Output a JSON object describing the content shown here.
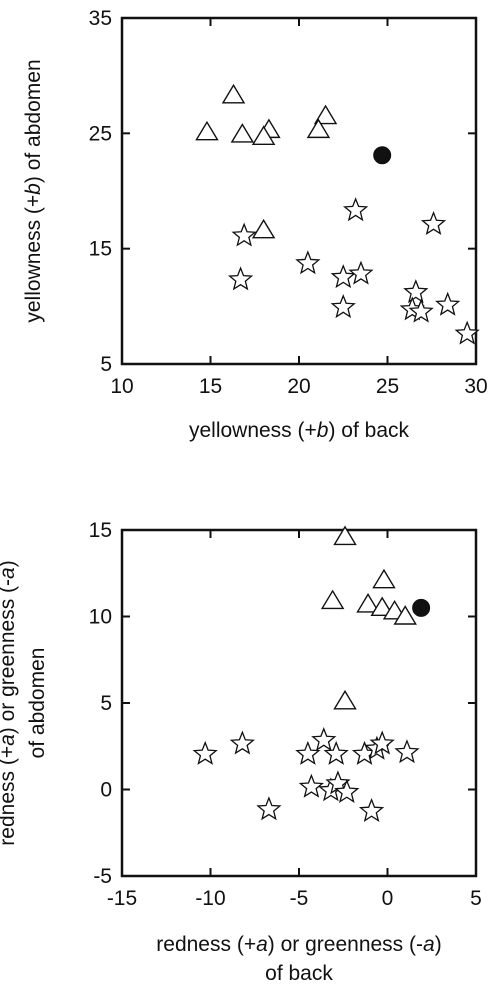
{
  "chart_data": [
    {
      "type": "scatter",
      "xlabel": [
        "yellowness (+",
        "b",
        ") of back"
      ],
      "ylabel": [
        "yellowness (+",
        "b",
        ") of abdomen"
      ],
      "xlim": [
        10,
        30
      ],
      "ylim": [
        5,
        35
      ],
      "xticks": [
        10,
        15,
        20,
        25,
        30
      ],
      "yticks": [
        5,
        15,
        25,
        35
      ],
      "xtick_labels": [
        "10",
        "15",
        "20",
        "25",
        "30"
      ],
      "ytick_labels": [
        "5",
        "15",
        "25",
        "35"
      ],
      "grid": false,
      "series": [
        {
          "marker": "triangle",
          "color": "#ffffff",
          "points": [
            [
              16.3,
              28.3
            ],
            [
              21.5,
              26.5
            ],
            [
              14.8,
              25.1
            ],
            [
              16.8,
              24.9
            ],
            [
              18.3,
              25.3
            ],
            [
              18.0,
              24.7
            ],
            [
              21.1,
              25.3
            ],
            [
              18.0,
              16.6
            ]
          ]
        },
        {
          "marker": "star",
          "color": "#ffffff",
          "points": [
            [
              23.2,
              18.4
            ],
            [
              27.6,
              17.2
            ],
            [
              16.9,
              16.2
            ],
            [
              20.5,
              13.8
            ],
            [
              16.7,
              12.4
            ],
            [
              22.5,
              12.6
            ],
            [
              23.5,
              12.9
            ],
            [
              22.5,
              10.0
            ],
            [
              26.6,
              11.3
            ],
            [
              26.4,
              9.8
            ],
            [
              26.9,
              9.6
            ],
            [
              28.4,
              10.2
            ],
            [
              29.5,
              7.7
            ]
          ]
        },
        {
          "marker": "circle-filled",
          "color": "#111111",
          "points": [
            [
              24.7,
              23.1
            ]
          ]
        }
      ]
    },
    {
      "type": "scatter",
      "xlabel": [
        "redness (+",
        "a",
        ") or greenness (-",
        "a",
        ")",
        "of back"
      ],
      "ylabel": [
        "redness (+",
        "a",
        ") or greenness (-",
        "a",
        ")",
        "of abdomen"
      ],
      "xlim": [
        -15,
        5
      ],
      "ylim": [
        -5,
        15
      ],
      "xticks": [
        -15,
        -10,
        -5,
        0,
        5
      ],
      "yticks": [
        -5,
        0,
        5,
        10,
        15
      ],
      "xtick_labels": [
        "-15",
        "-10",
        "-5",
        "0",
        "5"
      ],
      "ytick_labels": [
        "-5",
        "0",
        "5",
        "10",
        "15"
      ],
      "grid": false,
      "series": [
        {
          "marker": "triangle",
          "color": "#ffffff",
          "points": [
            [
              -2.4,
              14.6
            ],
            [
              -0.2,
              12.1
            ],
            [
              -3.1,
              10.9
            ],
            [
              -1.1,
              10.7
            ],
            [
              -0.3,
              10.5
            ],
            [
              0.4,
              10.3
            ],
            [
              1.0,
              10.0
            ],
            [
              -2.4,
              5.1
            ]
          ]
        },
        {
          "marker": "star",
          "color": "#ffffff",
          "points": [
            [
              -10.3,
              2.1
            ],
            [
              -8.2,
              2.7
            ],
            [
              -6.7,
              -1.1
            ],
            [
              -4.5,
              2.1
            ],
            [
              -3.6,
              2.9
            ],
            [
              -2.9,
              2.1
            ],
            [
              -4.3,
              0.2
            ],
            [
              -3.2,
              0.0
            ],
            [
              -2.8,
              0.4
            ],
            [
              -2.3,
              -0.1
            ],
            [
              -1.3,
              2.1
            ],
            [
              -0.6,
              2.4
            ],
            [
              -0.3,
              2.7
            ],
            [
              1.1,
              2.2
            ],
            [
              -0.9,
              -1.2
            ]
          ]
        },
        {
          "marker": "circle-filled",
          "color": "#111111",
          "points": [
            [
              1.9,
              10.5
            ]
          ]
        }
      ]
    }
  ]
}
